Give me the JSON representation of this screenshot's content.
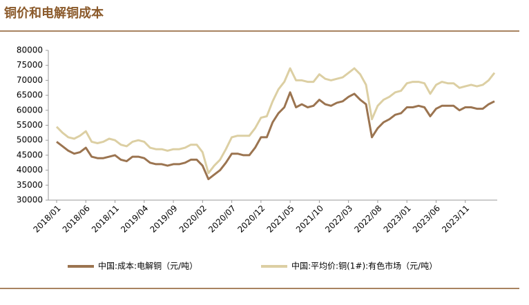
{
  "chart_data": {
    "type": "line",
    "title": "铜价和电解铜成本",
    "categories": [
      "2018/01",
      null,
      null,
      null,
      null,
      "2018/06",
      null,
      null,
      null,
      null,
      "2018/11",
      null,
      null,
      null,
      null,
      "2019/04",
      null,
      null,
      null,
      null,
      "2019/09",
      null,
      null,
      null,
      null,
      "2020/02",
      null,
      null,
      null,
      null,
      "2020/07",
      null,
      null,
      null,
      null,
      "2020/12",
      null,
      null,
      null,
      null,
      "2021/05",
      null,
      null,
      null,
      null,
      "2021/10",
      null,
      null,
      null,
      null,
      "2022/03",
      null,
      null,
      null,
      null,
      "2022/08",
      null,
      null,
      null,
      null,
      "2023/01",
      null,
      null,
      null,
      null,
      "2023/06",
      null,
      null,
      null,
      null,
      "2023/11",
      null,
      null,
      null,
      null,
      null
    ],
    "series": [
      {
        "name": "中国:成本:电解铜（元/吨）",
        "color": "#9b7450",
        "values": [
          49500,
          48000,
          46500,
          45500,
          46000,
          47500,
          44500,
          44000,
          44000,
          44500,
          45000,
          43500,
          43000,
          44500,
          44500,
          44000,
          42500,
          42000,
          42000,
          41500,
          42000,
          42000,
          42500,
          43500,
          43500,
          41500,
          37000,
          38500,
          40000,
          42500,
          45500,
          45500,
          45000,
          45000,
          47500,
          51000,
          51000,
          56000,
          59000,
          61000,
          66000,
          61000,
          62000,
          61000,
          61500,
          63500,
          62000,
          61500,
          62500,
          63000,
          64500,
          65500,
          63500,
          62000,
          51000,
          54000,
          56000,
          57000,
          58500,
          59000,
          61000,
          61000,
          61500,
          61000,
          58000,
          60500,
          61500,
          61500,
          61500,
          60000,
          61000,
          61000,
          60500,
          60500,
          62000,
          63000
        ]
      },
      {
        "name": "中国:平均价:铜(1#):有色市场（元/吨）",
        "color": "#dccfa3",
        "values": [
          54500,
          52500,
          51000,
          50500,
          51500,
          53000,
          49500,
          49000,
          49500,
          50500,
          50000,
          48500,
          48000,
          49500,
          50000,
          49500,
          47500,
          47000,
          47000,
          46500,
          47000,
          47000,
          47500,
          48500,
          48500,
          46000,
          39000,
          41500,
          43500,
          47000,
          51000,
          51500,
          51500,
          51500,
          54000,
          57500,
          58000,
          63000,
          67000,
          69500,
          74000,
          70000,
          70000,
          69500,
          69500,
          72000,
          70500,
          70000,
          70500,
          71000,
          72500,
          74000,
          72000,
          68500,
          57000,
          61500,
          63500,
          64500,
          66000,
          66500,
          69000,
          69500,
          69500,
          69000,
          65500,
          68500,
          69500,
          69000,
          69000,
          67500,
          68000,
          68500,
          68000,
          68500,
          70000,
          72500
        ]
      }
    ],
    "ylim": [
      30000,
      80000
    ],
    "yticks": [
      30000,
      35000,
      40000,
      45000,
      50000,
      55000,
      60000,
      65000,
      70000,
      75000,
      80000
    ]
  }
}
